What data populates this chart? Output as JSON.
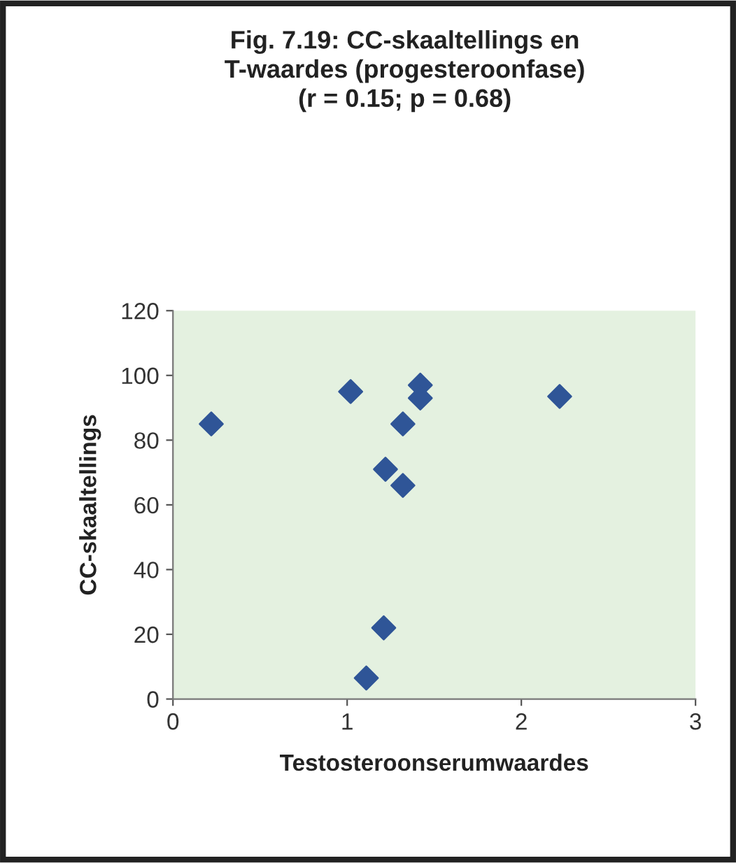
{
  "chart_data": {
    "type": "scatter",
    "title": "Fig. 7.19: CC-skaaltellings en\nT-waardes (progesteroonfase)\n(r = 0.15; p = 0.68)",
    "xlabel": "Testosteroonserumwaardes",
    "ylabel": "CC-skaaltellings",
    "x": [
      0.22,
      1.02,
      1.42,
      1.42,
      2.22,
      1.32,
      1.22,
      1.32,
      1.21,
      1.11
    ],
    "values": [
      85,
      95,
      97,
      93,
      93.5,
      85,
      71,
      66,
      22,
      6.5
    ],
    "color": "#2f5597",
    "marker": "diamond",
    "xlim": [
      0,
      3
    ],
    "ylim": [
      0,
      120
    ],
    "xticks": [
      0,
      1,
      2,
      3
    ],
    "yticks": [
      0,
      20,
      40,
      60,
      80,
      100,
      120
    ],
    "grid": false,
    "legend": false
  }
}
